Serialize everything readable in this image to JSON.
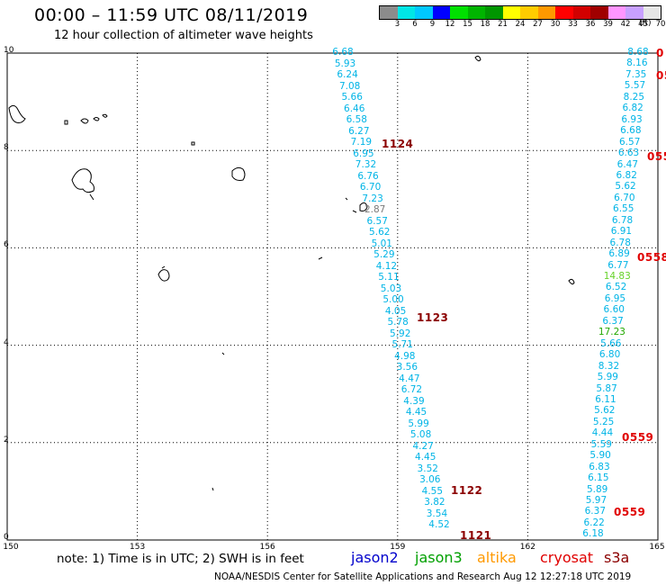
{
  "header": {
    "title": "00:00 – 11:59 UTC 08/11/2019",
    "subtitle": "12 hour collection of altimeter wave heights"
  },
  "legend": {
    "ticks": [
      "3",
      "6",
      "9",
      "12",
      "15",
      "18",
      "21",
      "24",
      "27",
      "30",
      "33",
      "36",
      "39",
      "42",
      "45",
      "70"
    ],
    "unit": "(ft)",
    "colors": [
      "#8c8c8c",
      "#00e6e6",
      "#00c8ff",
      "#0000ff",
      "#00e000",
      "#00b400",
      "#009600",
      "#ffff00",
      "#ffcc00",
      "#ff9900",
      "#ff0000",
      "#d20000",
      "#a00000",
      "#ff96ff",
      "#c8a0ff",
      "#e6e6e6"
    ]
  },
  "axes": {
    "x_ticks": [
      "150",
      "153",
      "156",
      "159",
      "162",
      "165"
    ],
    "y_ticks": [
      "0",
      "2",
      "4",
      "6",
      "8",
      "10"
    ],
    "xlim": [
      150,
      165
    ],
    "ylim": [
      0,
      10
    ]
  },
  "tracks": {
    "left": [
      {
        "v": "6.68",
        "c": "#00b4e6"
      },
      {
        "v": "5.93",
        "c": "#00b4e6"
      },
      {
        "v": "6.24",
        "c": "#00b4e6"
      },
      {
        "v": "7.08",
        "c": "#00b4e6"
      },
      {
        "v": "5.66",
        "c": "#00b4e6"
      },
      {
        "v": "6.46",
        "c": "#00b4e6"
      },
      {
        "v": "6.58",
        "c": "#00b4e6"
      },
      {
        "v": "6.27",
        "c": "#00b4e6"
      },
      {
        "v": "7.19",
        "c": "#00b4e6"
      },
      {
        "v": "6.95",
        "c": "#00b4e6"
      },
      {
        "v": "7.32",
        "c": "#00b4e6"
      },
      {
        "v": "6.76",
        "c": "#00b4e6"
      },
      {
        "v": "6.70",
        "c": "#00b4e6"
      },
      {
        "v": "7.23",
        "c": "#00b4e6"
      },
      {
        "v": "2.87",
        "c": "#7a7a7a"
      },
      {
        "v": "6.57",
        "c": "#00b4e6"
      },
      {
        "v": "5.62",
        "c": "#00b4e6"
      },
      {
        "v": "5.01",
        "c": "#00b4e6"
      },
      {
        "v": "5.29",
        "c": "#00b4e6"
      },
      {
        "v": "4.12",
        "c": "#00b4e6"
      },
      {
        "v": "5.11",
        "c": "#00b4e6"
      },
      {
        "v": "5.03",
        "c": "#00b4e6"
      },
      {
        "v": "5.00",
        "c": "#00b4e6"
      },
      {
        "v": "4.05",
        "c": "#00b4e6"
      },
      {
        "v": "5.78",
        "c": "#00b4e6"
      },
      {
        "v": "5.92",
        "c": "#00b4e6"
      },
      {
        "v": "5.71",
        "c": "#00b4e6"
      },
      {
        "v": "4.98",
        "c": "#00b4e6"
      },
      {
        "v": "3.56",
        "c": "#00b4e6"
      },
      {
        "v": "4.47",
        "c": "#00b4e6"
      },
      {
        "v": "6.72",
        "c": "#00b4e6"
      },
      {
        "v": "4.39",
        "c": "#00b4e6"
      },
      {
        "v": "4.45",
        "c": "#00b4e6"
      },
      {
        "v": "5.99",
        "c": "#00b4e6"
      },
      {
        "v": "5.08",
        "c": "#00b4e6"
      },
      {
        "v": "4.27",
        "c": "#00b4e6"
      },
      {
        "v": "4.45",
        "c": "#00b4e6"
      },
      {
        "v": "3.52",
        "c": "#00b4e6"
      },
      {
        "v": "3.06",
        "c": "#00b4e6"
      },
      {
        "v": "4.55",
        "c": "#00b4e6"
      },
      {
        "v": "3.82",
        "c": "#00b4e6"
      },
      {
        "v": "3.54",
        "c": "#00b4e6"
      },
      {
        "v": "4.52",
        "c": "#00b4e6"
      }
    ],
    "right": [
      {
        "v": "8.68",
        "c": "#00b4e6"
      },
      {
        "v": "8.16",
        "c": "#00b4e6"
      },
      {
        "v": "7.35",
        "c": "#00b4e6"
      },
      {
        "v": "5.57",
        "c": "#00b4e6"
      },
      {
        "v": "8.25",
        "c": "#00b4e6"
      },
      {
        "v": "6.82",
        "c": "#00b4e6"
      },
      {
        "v": "6.93",
        "c": "#00b4e6"
      },
      {
        "v": "6.68",
        "c": "#00b4e6"
      },
      {
        "v": "6.57",
        "c": "#00b4e6"
      },
      {
        "v": "6.63",
        "c": "#00b4e6"
      },
      {
        "v": "6.47",
        "c": "#00b4e6"
      },
      {
        "v": "6.82",
        "c": "#00b4e6"
      },
      {
        "v": "5.62",
        "c": "#00b4e6"
      },
      {
        "v": "6.70",
        "c": "#00b4e6"
      },
      {
        "v": "6.55",
        "c": "#00b4e6"
      },
      {
        "v": "6.78",
        "c": "#00b4e6"
      },
      {
        "v": "6.91",
        "c": "#00b4e6"
      },
      {
        "v": "6.78",
        "c": "#00b4e6"
      },
      {
        "v": "6.89",
        "c": "#00b4e6"
      },
      {
        "v": "6.77",
        "c": "#00b4e6"
      },
      {
        "v": "14.83",
        "c": "#66d22a"
      },
      {
        "v": "6.52",
        "c": "#00b4e6"
      },
      {
        "v": "6.95",
        "c": "#00b4e6"
      },
      {
        "v": "6.60",
        "c": "#00b4e6"
      },
      {
        "v": "6.37",
        "c": "#00b4e6"
      },
      {
        "v": "17.23",
        "c": "#22a800"
      },
      {
        "v": "5.66",
        "c": "#00b4e6"
      },
      {
        "v": "6.80",
        "c": "#00b4e6"
      },
      {
        "v": "8.32",
        "c": "#00b4e6"
      },
      {
        "v": "5.99",
        "c": "#00b4e6"
      },
      {
        "v": "5.87",
        "c": "#00b4e6"
      },
      {
        "v": "6.11",
        "c": "#00b4e6"
      },
      {
        "v": "5.62",
        "c": "#00b4e6"
      },
      {
        "v": "5.25",
        "c": "#00b4e6"
      },
      {
        "v": "4.44",
        "c": "#00b4e6"
      },
      {
        "v": "5.59",
        "c": "#00b4e6"
      },
      {
        "v": "5.90",
        "c": "#00b4e6"
      },
      {
        "v": "6.83",
        "c": "#00b4e6"
      },
      {
        "v": "6.15",
        "c": "#00b4e6"
      },
      {
        "v": "5.89",
        "c": "#00b4e6"
      },
      {
        "v": "5.97",
        "c": "#00b4e6"
      },
      {
        "v": "6.37",
        "c": "#00b4e6"
      },
      {
        "v": "6.22",
        "c": "#00b4e6"
      },
      {
        "v": "6.18",
        "c": "#00b4e6"
      }
    ]
  },
  "passes": [
    {
      "label": "1124",
      "color": "#8b0000"
    },
    {
      "label": "1123",
      "color": "#8b0000"
    },
    {
      "label": "1122",
      "color": "#8b0000"
    },
    {
      "label": "1121",
      "color": "#8b0000"
    },
    {
      "label": "0",
      "color": "#e00000"
    },
    {
      "label": "05",
      "color": "#e00000"
    },
    {
      "label": "055",
      "color": "#e00000"
    },
    {
      "label": "0558",
      "color": "#e00000"
    },
    {
      "label": "0559",
      "color": "#e00000"
    },
    {
      "label": "0559",
      "color": "#e00000"
    }
  ],
  "footer": {
    "note": "note:  1) Time is in UTC;  2) SWH is in feet",
    "satellites": [
      {
        "name": "jason2",
        "color": "#0000cc"
      },
      {
        "name": "jason3",
        "color": "#00a000"
      },
      {
        "name": "altika",
        "color": "#ff9900"
      },
      {
        "name": "cryosat",
        "color": "#e00000"
      },
      {
        "name": "s3a",
        "color": "#8b0000"
      }
    ],
    "credit": "NOAA/NESDIS Center for Satellite Applications and Research     Aug 12 12:27:18 UTC 2019"
  }
}
